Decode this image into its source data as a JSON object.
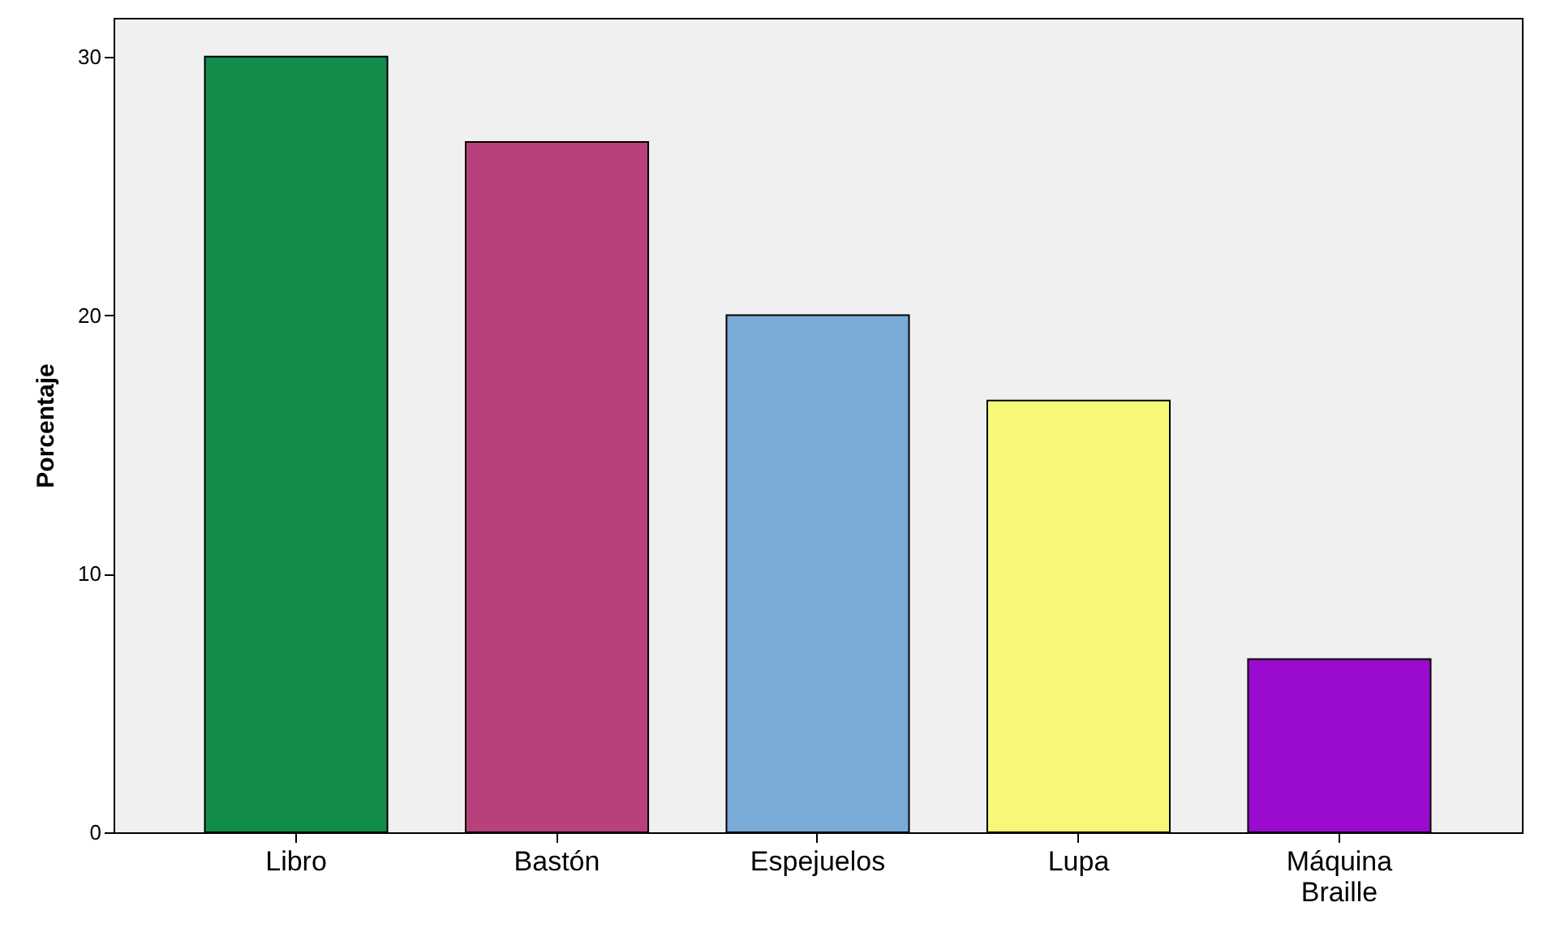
{
  "chart_data": {
    "type": "bar",
    "ylabel": "Porcentaje",
    "categories": [
      "Libro",
      "Bastón",
      "Espejuelos",
      "Lupa",
      "Máquina\nBraille"
    ],
    "values": [
      30,
      26.7,
      20,
      16.7,
      6.7
    ],
    "colors": [
      "#118c4a",
      "#b9417b",
      "#7aaad6",
      "#f8f878",
      "#9a0acf"
    ],
    "ylim": [
      0,
      31.5
    ],
    "yticks": [
      0,
      10,
      20,
      30
    ],
    "grid": false
  }
}
